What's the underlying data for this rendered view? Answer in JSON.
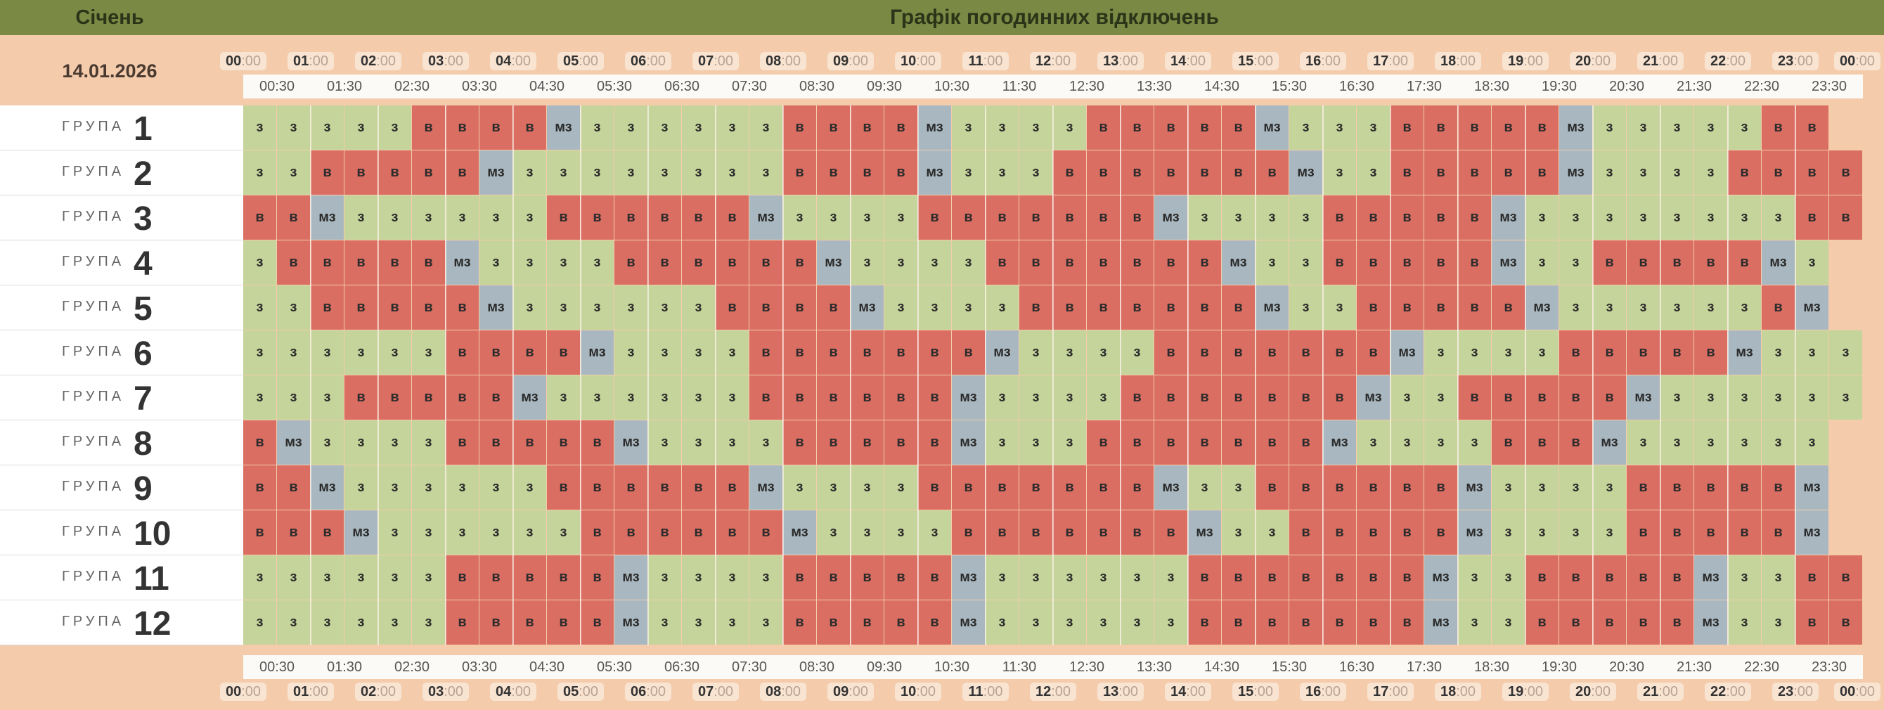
{
  "header": {
    "month": "Січень",
    "title": "Графік погодинних відключень"
  },
  "date": "14.01.2026",
  "time_axis": {
    "hours": [
      {
        "h": "00",
        "m": ":00"
      },
      {
        "h": "01",
        "m": ":00"
      },
      {
        "h": "02",
        "m": ":00"
      },
      {
        "h": "03",
        "m": ":00"
      },
      {
        "h": "04",
        "m": ":00"
      },
      {
        "h": "05",
        "m": ":00"
      },
      {
        "h": "06",
        "m": ":00"
      },
      {
        "h": "07",
        "m": ":00"
      },
      {
        "h": "08",
        "m": ":00"
      },
      {
        "h": "09",
        "m": ":00"
      },
      {
        "h": "10",
        "m": ":00"
      },
      {
        "h": "11",
        "m": ":00"
      },
      {
        "h": "12",
        "m": ":00"
      },
      {
        "h": "13",
        "m": ":00"
      },
      {
        "h": "14",
        "m": ":00"
      },
      {
        "h": "15",
        "m": ":00"
      },
      {
        "h": "16",
        "m": ":00"
      },
      {
        "h": "17",
        "m": ":00"
      },
      {
        "h": "18",
        "m": ":00"
      },
      {
        "h": "19",
        "m": ":00"
      },
      {
        "h": "20",
        "m": ":00"
      },
      {
        "h": "21",
        "m": ":00"
      },
      {
        "h": "22",
        "m": ":00"
      },
      {
        "h": "23",
        "m": ":00"
      },
      {
        "h": "00",
        "m": ":00"
      }
    ],
    "halves": [
      "00:30",
      "01:30",
      "02:30",
      "03:30",
      "04:30",
      "05:30",
      "06:30",
      "07:30",
      "08:30",
      "09:30",
      "10:30",
      "11:30",
      "12:30",
      "13:30",
      "14:30",
      "15:30",
      "16:30",
      "17:30",
      "18:30",
      "19:30",
      "20:30",
      "21:30",
      "22:30",
      "23:30"
    ]
  },
  "group_word": "ГРУПА",
  "codes": {
    "з": "з",
    "в": "в",
    "мз": "мз"
  },
  "status_colors": {
    "з": "#c5d49a",
    "в": "#da6e62",
    "мз": "#a9b8c0"
  },
  "groups": [
    {
      "number": "1",
      "slots": "зззззввввмзззззззввввмзззззвввввмззззвввввмззззззвв"
    },
    {
      "number": "2",
      "slots": "ззвввввмзззззззззввввмззззвввввввмзззвввввмзззззвввв"
    },
    {
      "number": "3",
      "slots": "ввмзззззззввввввмзззззвввввввмзззззвввввмзззззззззвв"
    },
    {
      "number": "4",
      "slots": "звввввмзззззввввввмзззззвввввввмзззвввввмзззвввввмзз"
    },
    {
      "number": "5",
      "slots": "ззвввввмзззззззввввмзззззвввввввмзззвввввмзззззззвмз"
    },
    {
      "number": "6",
      "slots": "ззззззввввмзззззвввввввмзззззвввввввмзззззвввввмзззз"
    },
    {
      "number": "7",
      "slots": "зззвввввмзззззззввввввмзззззвввввввмзззвввввмзззззззз"
    },
    {
      "number": "8",
      "slots": "вмзззззвввввмзззззвввввмззззвввввввмзззззвввмззззззз"
    },
    {
      "number": "9",
      "slots": "ввмзззззззввввввмзззззвввввввмзззввввввмзззззвввввмз"
    },
    {
      "number": "10",
      "slots": "вввмзззззззввввввмзззззвввввввмзззвввввмзззззвввввмз"
    },
    {
      "number": "11",
      "slots": "ззззззвввввмзззззвввввмзззззззвввввввмзззвввввмзззвв"
    },
    {
      "number": "12",
      "slots": "ззззззвввввмзззззвввввмзззззззвввввввмзззвввввмзззвв"
    }
  ]
}
